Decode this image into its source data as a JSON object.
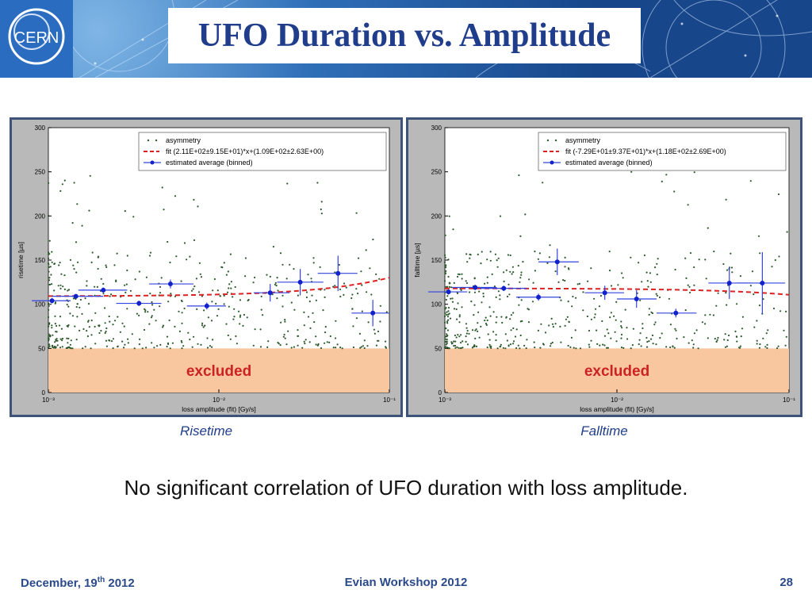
{
  "slide": {
    "title": "UFO Duration vs. Amplitude",
    "logo_text": "CERN",
    "conclusion": "No significant correlation of UFO duration with loss amplitude.",
    "footer": {
      "date_prefix": "December, 19",
      "date_sup": "th",
      "date_suffix": " 2012",
      "event": "Evian Workshop 2012",
      "page": "28"
    }
  },
  "chart_data": [
    {
      "type": "scatter",
      "caption": "Risetime",
      "xlabel": "loss amplitude (fit) [Gy/s]",
      "ylabel": "risetime [µs]",
      "xscale": "log",
      "xlim": [
        0.001,
        0.1
      ],
      "ylim": [
        0,
        300
      ],
      "xticks": [
        "10⁻³",
        "10⁻²",
        "10⁻¹"
      ],
      "yticks": [
        0,
        50,
        100,
        150,
        200,
        250,
        300
      ],
      "legend": [
        "asymmetry",
        "fit (2.11E+02±9.15E+01)*x+(1.09E+02±2.63E+00)",
        "estimated average (binned)"
      ],
      "legend_position": "top-right",
      "excluded_region": {
        "label": "excluded",
        "y_from": 0,
        "y_to": 50
      },
      "fit": {
        "slope": 211,
        "intercept": 109
      },
      "binned": [
        {
          "x": 0.00105,
          "xerr": [
            0.0008,
            0.00135
          ],
          "y": 104,
          "yerr": 3
        },
        {
          "x": 0.00145,
          "xerr": [
            0.00105,
            0.0021
          ],
          "y": 109,
          "yerr": 2
        },
        {
          "x": 0.0021,
          "xerr": [
            0.0015,
            0.0029
          ],
          "y": 116,
          "yerr": 3
        },
        {
          "x": 0.0034,
          "xerr": [
            0.0025,
            0.0046
          ],
          "y": 101,
          "yerr": 3
        },
        {
          "x": 0.0052,
          "xerr": [
            0.0039,
            0.0071
          ],
          "y": 123,
          "yerr": 5
        },
        {
          "x": 0.0085,
          "xerr": [
            0.0065,
            0.011
          ],
          "y": 98,
          "yerr": 4
        },
        {
          "x": 0.02,
          "xerr": [
            0.016,
            0.026
          ],
          "y": 113,
          "yerr": 10
        },
        {
          "x": 0.03,
          "xerr": [
            0.022,
            0.041
          ],
          "y": 125,
          "yerr": 15
        },
        {
          "x": 0.05,
          "xerr": [
            0.038,
            0.065
          ],
          "y": 135,
          "yerr": 20
        },
        {
          "x": 0.08,
          "xerr": [
            0.06,
            0.1
          ],
          "y": 90,
          "yerr": 15
        }
      ],
      "scatter_seed": 7
    },
    {
      "type": "scatter",
      "caption": "Falltime",
      "xlabel": "loss amplitude (fit) [Gy/s]",
      "ylabel": "falltime [µs]",
      "xscale": "log",
      "xlim": [
        0.001,
        0.1
      ],
      "ylim": [
        0,
        300
      ],
      "xticks": [
        "10⁻³",
        "10⁻²",
        "10⁻¹"
      ],
      "yticks": [
        0,
        50,
        100,
        150,
        200,
        250,
        300
      ],
      "legend": [
        "asymmetry",
        "fit (-7.29E+01±9.37E+01)*x+(1.18E+02±2.69E+00)",
        "estimated average (binned)"
      ],
      "legend_position": "top-right",
      "excluded_region": {
        "label": "excluded",
        "y_from": 0,
        "y_to": 50
      },
      "fit": {
        "slope": -72.9,
        "intercept": 118
      },
      "binned": [
        {
          "x": 0.00105,
          "xerr": [
            0.0008,
            0.00135
          ],
          "y": 114,
          "yerr": 3
        },
        {
          "x": 0.0015,
          "xerr": [
            0.0011,
            0.002
          ],
          "y": 119,
          "yerr": 3
        },
        {
          "x": 0.0022,
          "xerr": [
            0.0016,
            0.003
          ],
          "y": 118,
          "yerr": 3
        },
        {
          "x": 0.0035,
          "xerr": [
            0.0026,
            0.0047
          ],
          "y": 108,
          "yerr": 4
        },
        {
          "x": 0.0045,
          "xerr": [
            0.0035,
            0.006
          ],
          "y": 148,
          "yerr": 15
        },
        {
          "x": 0.0085,
          "xerr": [
            0.0065,
            0.011
          ],
          "y": 113,
          "yerr": 8
        },
        {
          "x": 0.013,
          "xerr": [
            0.01,
            0.017
          ],
          "y": 106,
          "yerr": 10
        },
        {
          "x": 0.022,
          "xerr": [
            0.017,
            0.029
          ],
          "y": 90,
          "yerr": 5
        },
        {
          "x": 0.045,
          "xerr": [
            0.034,
            0.06
          ],
          "y": 124,
          "yerr": 18
        },
        {
          "x": 0.07,
          "xerr": [
            0.05,
            0.095
          ],
          "y": 124,
          "yerr": 35
        }
      ],
      "scatter_seed": 19
    }
  ]
}
